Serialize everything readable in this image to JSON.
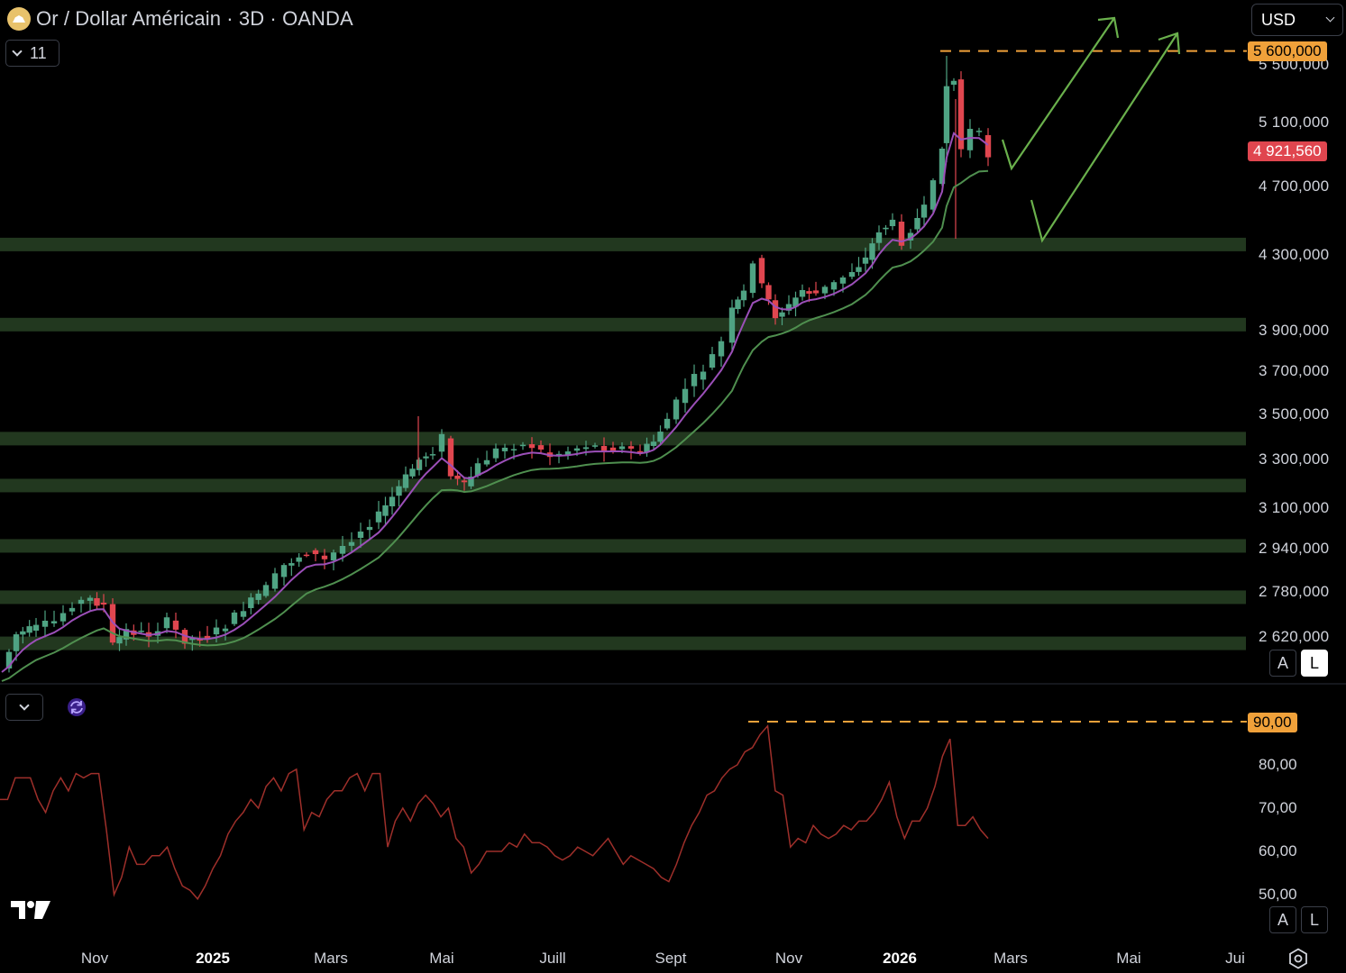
{
  "header": {
    "title": "Or / Dollar Américain · 3D · OANDA",
    "indicator_count": "11",
    "currency": "USD"
  },
  "price_axis": {
    "labels": [
      "5 500,000",
      "5 100,000",
      "4 700,000",
      "4 300,000",
      "3 900,000",
      "3 700,000",
      "3 500,000",
      "3 300,000",
      "3 100,000",
      "2 940,000",
      "2 780,000",
      "2 620,000"
    ],
    "target_badge": "5 600,000",
    "last_price_badge": "4 921,560"
  },
  "rsi_axis": {
    "labels": [
      "80,00",
      "70,00",
      "60,00",
      "50,00"
    ],
    "level_badge": "90,00"
  },
  "buttons": {
    "auto": "A",
    "log": "L"
  },
  "time_axis": {
    "labels": [
      {
        "text": "Nov",
        "bold": false
      },
      {
        "text": "2025",
        "bold": true
      },
      {
        "text": "Mars",
        "bold": false
      },
      {
        "text": "Mai",
        "bold": false
      },
      {
        "text": "Juill",
        "bold": false
      },
      {
        "text": "Sept",
        "bold": false
      },
      {
        "text": "Nov",
        "bold": false
      },
      {
        "text": "2026",
        "bold": true
      },
      {
        "text": "Mars",
        "bold": false
      },
      {
        "text": "Mai",
        "bold": false
      },
      {
        "text": "Jui",
        "bold": false
      }
    ]
  },
  "colors": {
    "up": "#4fa383",
    "down": "#e0464f",
    "ema_fast": "#9b4fb8",
    "ema_slow": "#4f8f4f",
    "zone": "#22381f",
    "rsi": "#9e2f2a",
    "orange": "#f0a13a",
    "arrow": "#6ab04c"
  },
  "chart_data": {
    "type": "candlestick",
    "price_scale": "log",
    "support_resistance_zones": [
      4360,
      3930,
      3390,
      3190,
      2950,
      2760,
      2600
    ],
    "target_level": 5600,
    "last_price": 4921.56,
    "rsi": {
      "level": 90,
      "ticks": [
        80,
        70,
        60,
        50
      ],
      "values": [
        72,
        72,
        77,
        77,
        77,
        72,
        69,
        74,
        77,
        74,
        78,
        77,
        78,
        78,
        65,
        50,
        54,
        61,
        57,
        57,
        59,
        59,
        61,
        56,
        52,
        51,
        49,
        52,
        56,
        59,
        64,
        67,
        69,
        72,
        70,
        75,
        77,
        74,
        78,
        79,
        65,
        69,
        68,
        72,
        74,
        74,
        77,
        78,
        74,
        78,
        78,
        61,
        67,
        70,
        67,
        71,
        73,
        71,
        68,
        70,
        63,
        61,
        55,
        57,
        60,
        60,
        60,
        62,
        61,
        64,
        62,
        62,
        61,
        59,
        58,
        59,
        61,
        60,
        59,
        61,
        63,
        60,
        57,
        59,
        58,
        57,
        56,
        54,
        53,
        57,
        62,
        66,
        69,
        73,
        74,
        77,
        79,
        80,
        83,
        84,
        87,
        89,
        74,
        73,
        61,
        63,
        62,
        66,
        64,
        63,
        64,
        66,
        65,
        67,
        67,
        69,
        72,
        76,
        68,
        63,
        67,
        67,
        70,
        75,
        82,
        86,
        66,
        66,
        68,
        65,
        63
      ]
    },
    "projection": "two upward arrows"
  }
}
